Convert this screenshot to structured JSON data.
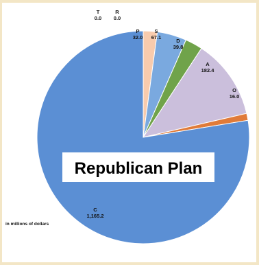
{
  "chart_data": {
    "type": "pie",
    "title": "Republican Plan",
    "note": "in millions of dollars",
    "slices": [
      {
        "label": "T",
        "value": 0.0,
        "value_text": "0.0",
        "color": "#2f6db5"
      },
      {
        "label": "R",
        "value": 0.0,
        "value_text": "0.0",
        "color": "#d9d9d9"
      },
      {
        "label": "P",
        "value": 32.0,
        "value_text": "32.0",
        "color": "#f8cbad"
      },
      {
        "label": "S",
        "value": 67.1,
        "value_text": "67.1",
        "color": "#7aa9df"
      },
      {
        "label": "D",
        "value": 39.8,
        "value_text": "39.8",
        "color": "#70a34a"
      },
      {
        "label": "A",
        "value": 182.4,
        "value_text": "182.4",
        "color": "#cbbfdc"
      },
      {
        "label": "O",
        "value": 16.0,
        "value_text": "16.0",
        "color": "#e07b39"
      },
      {
        "label": "C",
        "value": 1165.2,
        "value_text": "1,165.2",
        "color": "#5b8fd4"
      }
    ],
    "legend": "none"
  }
}
